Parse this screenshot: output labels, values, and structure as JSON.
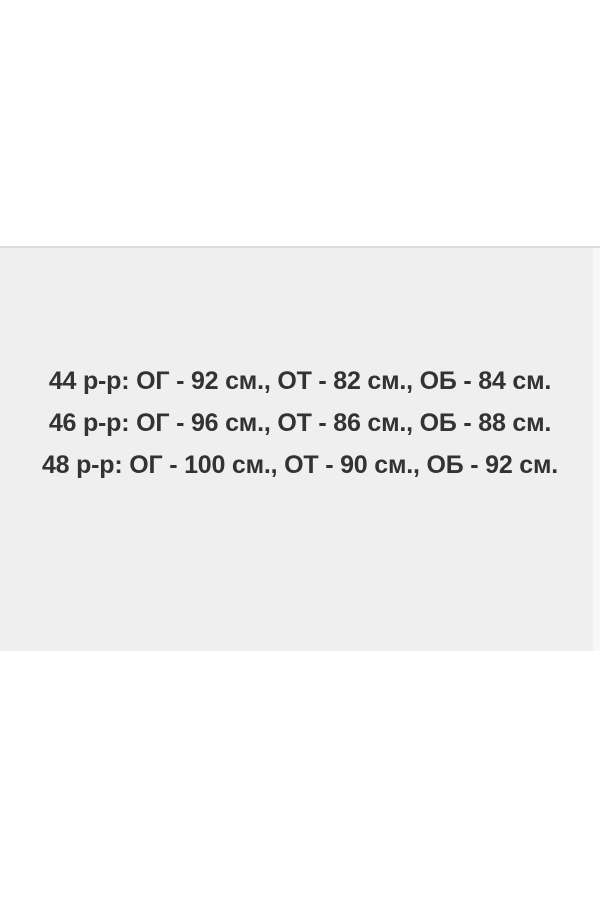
{
  "size_chart": {
    "lines": [
      "44 р-р: ОГ - 92 см., ОТ - 82 см., ОБ - 84 см.",
      "46 р-р: ОГ - 96 см., ОТ - 86 см., ОБ - 88 см.",
      "48 р-р: ОГ - 100 см., ОТ - 90 см., ОБ - 92 см."
    ],
    "rows": [
      {
        "size": "44",
        "chest_cm": 92,
        "waist_cm": 82,
        "hips_cm": 84
      },
      {
        "size": "46",
        "chest_cm": 96,
        "waist_cm": 86,
        "hips_cm": 88
      },
      {
        "size": "48",
        "chest_cm": 100,
        "waist_cm": 90,
        "hips_cm": 92
      }
    ]
  },
  "colors": {
    "page_bg": "#ffffff",
    "panel_bg": "#efefef",
    "divider": "#dcdcdc",
    "text": "#333333"
  }
}
